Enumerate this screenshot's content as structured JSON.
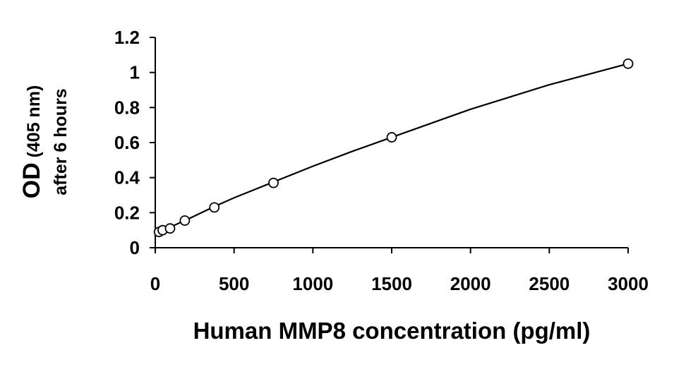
{
  "chart_data": {
    "type": "scatter",
    "title": "",
    "xlabel": "Human MMP8 concentration (pg/ml)",
    "ylabel": {
      "prefix": "OD",
      "suffix": " (405 nm)",
      "line2": "after 6 hours"
    },
    "xlim": [
      0,
      3000
    ],
    "ylim": [
      0,
      1.2
    ],
    "x_ticks": [
      0,
      500,
      1000,
      1500,
      2000,
      2500,
      3000
    ],
    "x_tick_labels": [
      "0",
      "500",
      "1000",
      "1500",
      "2000",
      "2500",
      "3000"
    ],
    "y_ticks": [
      0,
      0.2,
      0.4,
      0.6,
      0.8,
      1.0,
      1.2
    ],
    "y_tick_labels": [
      "0",
      "0.2",
      "0.4",
      "0.6",
      "0.8",
      "1",
      "1.2"
    ],
    "grid": false,
    "legend": "none",
    "series": [
      {
        "x": [
          23.4,
          46.9,
          93.8,
          187.5,
          375,
          750,
          1500,
          3000
        ],
        "y": [
          0.09,
          0.1,
          0.11,
          0.155,
          0.23,
          0.37,
          0.63,
          1.05
        ],
        "marker": "open-circle",
        "color": "#000000",
        "fit_curve": {
          "x": [
            20,
            100,
            200,
            375,
            500,
            750,
            1000,
            1250,
            1500,
            1750,
            2000,
            2250,
            2500,
            2750,
            3000
          ],
          "y": [
            0.085,
            0.12,
            0.16,
            0.235,
            0.285,
            0.375,
            0.465,
            0.55,
            0.63,
            0.71,
            0.79,
            0.86,
            0.93,
            0.99,
            1.05
          ]
        }
      }
    ]
  }
}
